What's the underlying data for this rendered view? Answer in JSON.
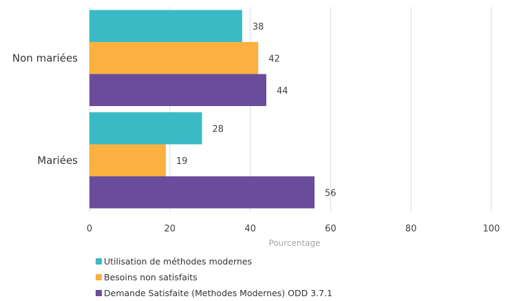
{
  "chart_data": {
    "type": "bar",
    "orientation": "horizontal",
    "categories": [
      "Non mariées",
      "Mariées"
    ],
    "series": [
      {
        "name": "Utilisation de méthodes modernes",
        "values": [
          38,
          28
        ],
        "color": "#3bbac6"
      },
      {
        "name": "Besoins non satisfaits",
        "values": [
          42,
          19
        ],
        "color": "#fbb040"
      },
      {
        "name": "Demande Satisfaite (Methodes Modernes) ODD 3.7.1",
        "values": [
          44,
          56
        ],
        "color": "#6a4c9c"
      }
    ],
    "xlabel": "Pourcentage",
    "xlim": [
      0,
      100
    ],
    "xticks": [
      "0",
      "20",
      "40",
      "60",
      "80",
      "100"
    ],
    "grid": true,
    "legend_position": "bottom-left"
  }
}
